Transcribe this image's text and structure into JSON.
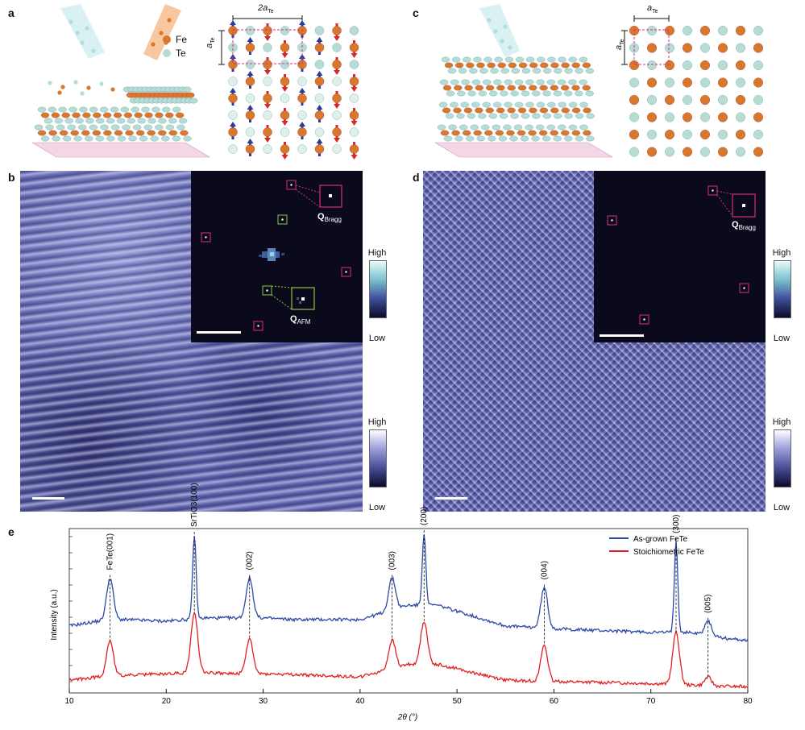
{
  "panels": {
    "a": "a",
    "b": "b",
    "c": "c",
    "d": "d",
    "e": "e"
  },
  "panel_a": {
    "legend": [
      {
        "label": "Fe",
        "color": "#d9772a"
      },
      {
        "label": "Te",
        "color": "#b7dcd6"
      }
    ],
    "lattice_top_label_prefix": "2",
    "lattice_top_label_symbol": "a",
    "lattice_top_label_sub": "Te",
    "lattice_side_label_symbol": "a",
    "lattice_side_label_sub": "Te"
  },
  "panel_c": {
    "lattice_top_label_symbol": "a",
    "lattice_top_label_sub": "Te",
    "lattice_side_label_symbol": "a",
    "lattice_side_label_sub": "Te"
  },
  "panel_b": {
    "q_bragg_main": "Q",
    "q_bragg_sub": "Bragg",
    "q_afm_main": "Q",
    "q_afm_sub": "AFM",
    "inset_colorbar_high": "High",
    "inset_colorbar_low": "Low",
    "image_colorbar_high": "High",
    "image_colorbar_low": "Low"
  },
  "panel_d": {
    "q_bragg_main": "Q",
    "q_bragg_sub": "Bragg",
    "inset_colorbar_high": "High",
    "inset_colorbar_low": "Low",
    "image_colorbar_high": "High",
    "image_colorbar_low": "Low"
  },
  "colors": {
    "fe": "#d9772a",
    "te": "#b7dcd6",
    "spin_up": "#2a3b9a",
    "spin_down": "#d42a2a",
    "box_magenta": "#d8307a",
    "box_green": "#8cc63f",
    "stm_base": "#5b5fa8",
    "as_grown": "#2f4aa6",
    "stoich": "#e02020"
  },
  "chart_data": {
    "type": "line",
    "title": "",
    "xlabel": "2θ (°)",
    "ylabel": "Intensity (a.u.)",
    "xlim": [
      10,
      80
    ],
    "xticks": [
      10,
      20,
      30,
      40,
      50,
      60,
      70,
      80
    ],
    "legend_position": "top-right",
    "series": [
      {
        "name": "As-grown FeTe",
        "color": "#2f4aa6",
        "x": [
          10,
          13,
          14.2,
          15.5,
          20,
          22.9,
          24,
          27,
          28.6,
          30,
          33,
          40,
          43.3,
          45,
          46.6,
          48,
          55,
          59.0,
          61,
          70,
          72.6,
          74,
          75.9,
          78,
          80
        ],
        "y": [
          0.42,
          0.45,
          0.72,
          0.46,
          0.45,
          0.99,
          0.47,
          0.47,
          0.72,
          0.47,
          0.46,
          0.46,
          0.72,
          0.55,
          1.0,
          0.55,
          0.42,
          0.66,
          0.4,
          0.38,
          0.95,
          0.38,
          0.45,
          0.34,
          0.33
        ]
      },
      {
        "name": "Stoichiometric FeTe",
        "color": "#e02020",
        "x": [
          10,
          13,
          14.2,
          15.5,
          20,
          22.9,
          24,
          27,
          28.6,
          30,
          40,
          43.3,
          45,
          46.6,
          48,
          55,
          59.0,
          61,
          70,
          72.6,
          74,
          75.9,
          78,
          80
        ],
        "y": [
          0.08,
          0.1,
          0.33,
          0.11,
          0.12,
          0.5,
          0.13,
          0.12,
          0.34,
          0.12,
          0.1,
          0.33,
          0.18,
          0.45,
          0.18,
          0.08,
          0.3,
          0.07,
          0.06,
          0.38,
          0.05,
          0.1,
          0.04,
          0.04
        ]
      }
    ],
    "annotations": [
      {
        "label": "FeTe(001)",
        "x": 14.2
      },
      {
        "label": "SrTiO3(100)",
        "x": 22.9
      },
      {
        "label": "(002)",
        "x": 28.6
      },
      {
        "label": "(003)",
        "x": 43.3
      },
      {
        "label": "(200)",
        "x": 46.6
      },
      {
        "label": "(004)",
        "x": 59.0
      },
      {
        "label": "(300)",
        "x": 72.6
      },
      {
        "label": "(005)",
        "x": 75.9
      }
    ]
  }
}
